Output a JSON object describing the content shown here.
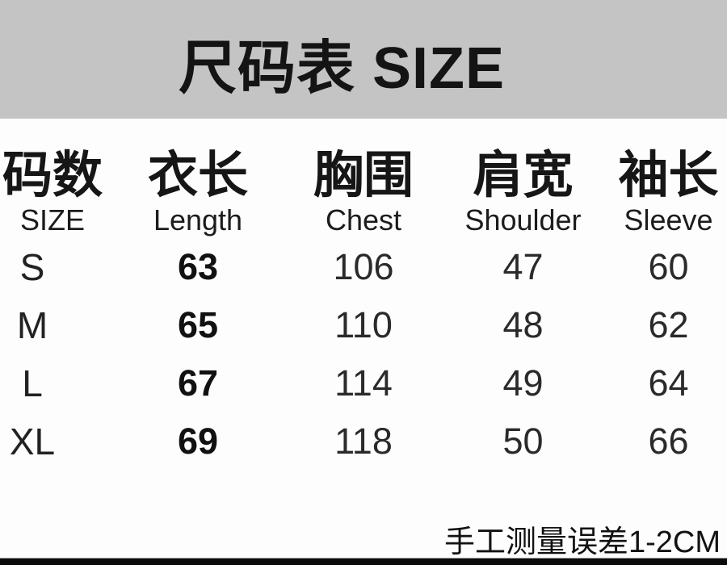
{
  "banner": {
    "title": "尺码表 SIZE"
  },
  "table": {
    "headers": [
      {
        "zh": "码数",
        "en": "SIZE"
      },
      {
        "zh": "衣长",
        "en": "Length"
      },
      {
        "zh": "胸围",
        "en": "Chest"
      },
      {
        "zh": "肩宽",
        "en": "Shoulder"
      },
      {
        "zh": "袖长",
        "en": "Sleeve"
      }
    ],
    "rows": [
      [
        "S",
        "63",
        "106",
        "47",
        "60"
      ],
      [
        "M",
        "65",
        "110",
        "48",
        "62"
      ],
      [
        "L",
        "67",
        "114",
        "49",
        "64"
      ],
      [
        "XL",
        "69",
        "118",
        "50",
        "66"
      ]
    ]
  },
  "footer": {
    "note": "手工测量误差1-2CM"
  },
  "colors": {
    "banner_bg": "#c4c4c4",
    "page_bg": "#fdfdfd",
    "text": "#1c1c1c",
    "bottom_bar": "#0b0b0b"
  },
  "chart_data": {
    "type": "table",
    "title": "尺码表 SIZE",
    "columns": [
      "码数 SIZE",
      "衣长 Length",
      "胸围 Chest",
      "肩宽 Shoulder",
      "袖长 Sleeve"
    ],
    "rows": [
      [
        "S",
        63,
        106,
        47,
        60
      ],
      [
        "M",
        65,
        110,
        48,
        62
      ],
      [
        "L",
        67,
        114,
        49,
        64
      ],
      [
        "XL",
        69,
        118,
        50,
        66
      ]
    ],
    "note": "手工测量误差1-2CM"
  }
}
